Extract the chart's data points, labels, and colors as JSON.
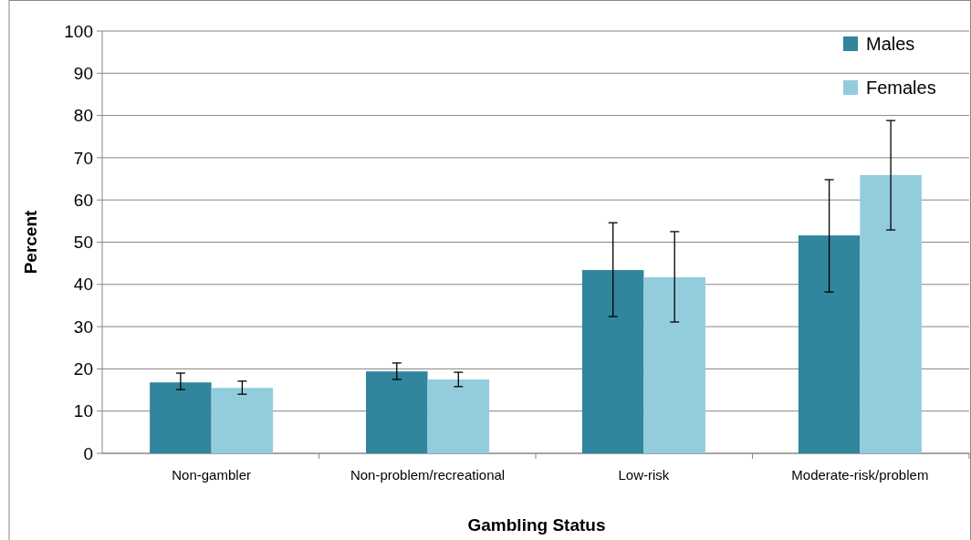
{
  "chart_data": {
    "type": "bar",
    "xlabel": "Gambling Status",
    "ylabel": "Percent",
    "categories": [
      "Non-gambler",
      "Non-problem/recreational",
      "Low-risk",
      "Moderate-risk/problem"
    ],
    "series": [
      {
        "name": "Males",
        "color": "#31859c",
        "values": [
          16.8,
          19.4,
          43.4,
          51.6
        ],
        "errors": [
          [
            15.1,
            19.0
          ],
          [
            17.5,
            21.4
          ],
          [
            32.4,
            54.6
          ],
          [
            38.2,
            64.8
          ]
        ]
      },
      {
        "name": "Females",
        "color": "#93cddd",
        "values": [
          15.5,
          17.5,
          41.7,
          65.9
        ],
        "errors": [
          [
            14.0,
            17.1
          ],
          [
            15.8,
            19.2
          ],
          [
            31.1,
            52.5
          ],
          [
            52.9,
            78.8
          ]
        ]
      }
    ],
    "ylim": [
      0,
      100
    ],
    "yticks": [
      0,
      10,
      20,
      30,
      40,
      50,
      60,
      70,
      80,
      90,
      100
    ],
    "grid": "y",
    "legend": "top right"
  }
}
